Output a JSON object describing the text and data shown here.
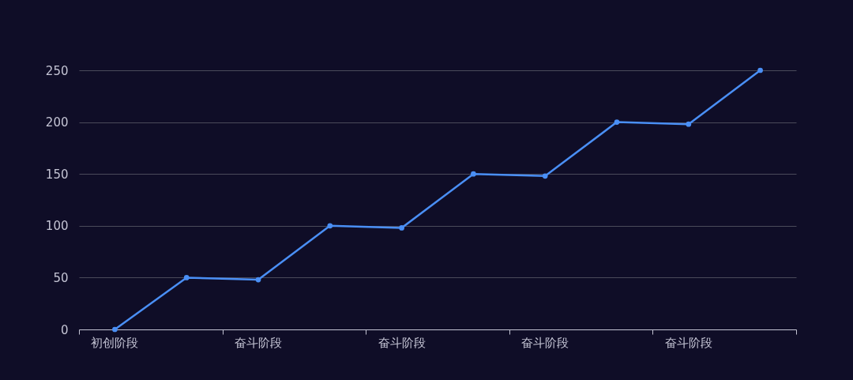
{
  "chart_data": {
    "type": "line",
    "categories": [
      "初创阶段",
      null,
      "奋斗阶段",
      null,
      "奋斗阶段",
      null,
      "奋斗阶段",
      null,
      "奋斗阶段",
      null
    ],
    "series": [
      {
        "color": "#4a8ff5",
        "values": [
          0,
          50,
          48,
          100,
          98,
          150,
          148,
          200,
          198,
          250
        ]
      }
    ],
    "ylim": [
      0,
      250
    ],
    "yticks": [
      0,
      50,
      100,
      150,
      200,
      250
    ],
    "grid": "y",
    "marker": "circle"
  }
}
